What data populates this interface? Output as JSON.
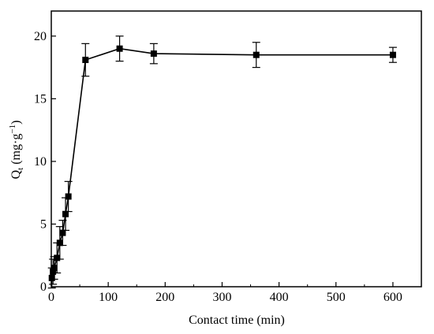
{
  "chart_data": {
    "type": "line",
    "xlabel": "Contact time (min)",
    "ylabel": {
      "main": "Q",
      "subscript": "t",
      "unit_open": " (mg·g",
      "unit_sup": "−1",
      "unit_close": ")"
    },
    "xlim": [
      0,
      650
    ],
    "ylim": [
      0,
      22
    ],
    "x_ticks": [
      0,
      100,
      200,
      300,
      400,
      500,
      600
    ],
    "y_ticks": [
      0,
      5,
      10,
      15,
      20
    ],
    "grid": false,
    "legend": "none",
    "series": [
      {
        "marker": "square",
        "color": "#000000",
        "x": [
          1,
          3,
          5,
          10,
          15,
          20,
          25,
          30,
          60,
          120,
          180,
          360,
          600
        ],
        "y": [
          0.7,
          1.2,
          1.5,
          2.3,
          3.5,
          4.3,
          5.8,
          7.2,
          18.1,
          19.0,
          18.6,
          18.5,
          18.5
        ],
        "err": [
          0.8,
          1.0,
          0.9,
          1.2,
          1.3,
          1.0,
          1.3,
          1.2,
          1.3,
          1.0,
          0.8,
          1.0,
          0.6
        ]
      }
    ]
  }
}
